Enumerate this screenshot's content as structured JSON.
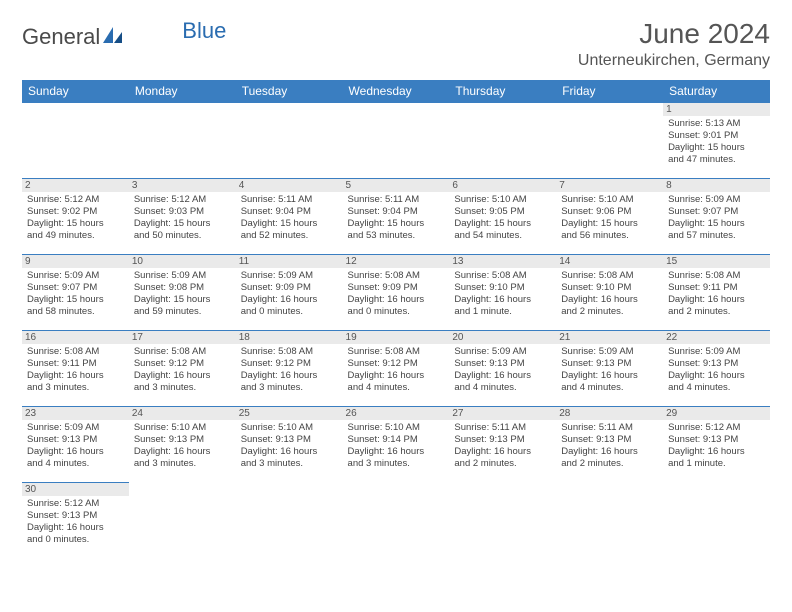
{
  "logo": {
    "text1": "General",
    "text2": "Blue"
  },
  "title": {
    "month": "June 2024",
    "location": "Unterneukirchen, Germany"
  },
  "colors": {
    "header_bg": "#3a7ec1",
    "header_fg": "#ffffff",
    "daynum_bg": "#eaeaea",
    "row_border": "#3a7ec1",
    "text": "#444444"
  },
  "daynames": [
    "Sunday",
    "Monday",
    "Tuesday",
    "Wednesday",
    "Thursday",
    "Friday",
    "Saturday"
  ],
  "weeks": [
    [
      null,
      null,
      null,
      null,
      null,
      null,
      {
        "day": "1",
        "sunrise": "Sunrise: 5:13 AM",
        "sunset": "Sunset: 9:01 PM",
        "daylight1": "Daylight: 15 hours",
        "daylight2": "and 47 minutes."
      }
    ],
    [
      {
        "day": "2",
        "sunrise": "Sunrise: 5:12 AM",
        "sunset": "Sunset: 9:02 PM",
        "daylight1": "Daylight: 15 hours",
        "daylight2": "and 49 minutes."
      },
      {
        "day": "3",
        "sunrise": "Sunrise: 5:12 AM",
        "sunset": "Sunset: 9:03 PM",
        "daylight1": "Daylight: 15 hours",
        "daylight2": "and 50 minutes."
      },
      {
        "day": "4",
        "sunrise": "Sunrise: 5:11 AM",
        "sunset": "Sunset: 9:04 PM",
        "daylight1": "Daylight: 15 hours",
        "daylight2": "and 52 minutes."
      },
      {
        "day": "5",
        "sunrise": "Sunrise: 5:11 AM",
        "sunset": "Sunset: 9:04 PM",
        "daylight1": "Daylight: 15 hours",
        "daylight2": "and 53 minutes."
      },
      {
        "day": "6",
        "sunrise": "Sunrise: 5:10 AM",
        "sunset": "Sunset: 9:05 PM",
        "daylight1": "Daylight: 15 hours",
        "daylight2": "and 54 minutes."
      },
      {
        "day": "7",
        "sunrise": "Sunrise: 5:10 AM",
        "sunset": "Sunset: 9:06 PM",
        "daylight1": "Daylight: 15 hours",
        "daylight2": "and 56 minutes."
      },
      {
        "day": "8",
        "sunrise": "Sunrise: 5:09 AM",
        "sunset": "Sunset: 9:07 PM",
        "daylight1": "Daylight: 15 hours",
        "daylight2": "and 57 minutes."
      }
    ],
    [
      {
        "day": "9",
        "sunrise": "Sunrise: 5:09 AM",
        "sunset": "Sunset: 9:07 PM",
        "daylight1": "Daylight: 15 hours",
        "daylight2": "and 58 minutes."
      },
      {
        "day": "10",
        "sunrise": "Sunrise: 5:09 AM",
        "sunset": "Sunset: 9:08 PM",
        "daylight1": "Daylight: 15 hours",
        "daylight2": "and 59 minutes."
      },
      {
        "day": "11",
        "sunrise": "Sunrise: 5:09 AM",
        "sunset": "Sunset: 9:09 PM",
        "daylight1": "Daylight: 16 hours",
        "daylight2": "and 0 minutes."
      },
      {
        "day": "12",
        "sunrise": "Sunrise: 5:08 AM",
        "sunset": "Sunset: 9:09 PM",
        "daylight1": "Daylight: 16 hours",
        "daylight2": "and 0 minutes."
      },
      {
        "day": "13",
        "sunrise": "Sunrise: 5:08 AM",
        "sunset": "Sunset: 9:10 PM",
        "daylight1": "Daylight: 16 hours",
        "daylight2": "and 1 minute."
      },
      {
        "day": "14",
        "sunrise": "Sunrise: 5:08 AM",
        "sunset": "Sunset: 9:10 PM",
        "daylight1": "Daylight: 16 hours",
        "daylight2": "and 2 minutes."
      },
      {
        "day": "15",
        "sunrise": "Sunrise: 5:08 AM",
        "sunset": "Sunset: 9:11 PM",
        "daylight1": "Daylight: 16 hours",
        "daylight2": "and 2 minutes."
      }
    ],
    [
      {
        "day": "16",
        "sunrise": "Sunrise: 5:08 AM",
        "sunset": "Sunset: 9:11 PM",
        "daylight1": "Daylight: 16 hours",
        "daylight2": "and 3 minutes."
      },
      {
        "day": "17",
        "sunrise": "Sunrise: 5:08 AM",
        "sunset": "Sunset: 9:12 PM",
        "daylight1": "Daylight: 16 hours",
        "daylight2": "and 3 minutes."
      },
      {
        "day": "18",
        "sunrise": "Sunrise: 5:08 AM",
        "sunset": "Sunset: 9:12 PM",
        "daylight1": "Daylight: 16 hours",
        "daylight2": "and 3 minutes."
      },
      {
        "day": "19",
        "sunrise": "Sunrise: 5:08 AM",
        "sunset": "Sunset: 9:12 PM",
        "daylight1": "Daylight: 16 hours",
        "daylight2": "and 4 minutes."
      },
      {
        "day": "20",
        "sunrise": "Sunrise: 5:09 AM",
        "sunset": "Sunset: 9:13 PM",
        "daylight1": "Daylight: 16 hours",
        "daylight2": "and 4 minutes."
      },
      {
        "day": "21",
        "sunrise": "Sunrise: 5:09 AM",
        "sunset": "Sunset: 9:13 PM",
        "daylight1": "Daylight: 16 hours",
        "daylight2": "and 4 minutes."
      },
      {
        "day": "22",
        "sunrise": "Sunrise: 5:09 AM",
        "sunset": "Sunset: 9:13 PM",
        "daylight1": "Daylight: 16 hours",
        "daylight2": "and 4 minutes."
      }
    ],
    [
      {
        "day": "23",
        "sunrise": "Sunrise: 5:09 AM",
        "sunset": "Sunset: 9:13 PM",
        "daylight1": "Daylight: 16 hours",
        "daylight2": "and 4 minutes."
      },
      {
        "day": "24",
        "sunrise": "Sunrise: 5:10 AM",
        "sunset": "Sunset: 9:13 PM",
        "daylight1": "Daylight: 16 hours",
        "daylight2": "and 3 minutes."
      },
      {
        "day": "25",
        "sunrise": "Sunrise: 5:10 AM",
        "sunset": "Sunset: 9:13 PM",
        "daylight1": "Daylight: 16 hours",
        "daylight2": "and 3 minutes."
      },
      {
        "day": "26",
        "sunrise": "Sunrise: 5:10 AM",
        "sunset": "Sunset: 9:14 PM",
        "daylight1": "Daylight: 16 hours",
        "daylight2": "and 3 minutes."
      },
      {
        "day": "27",
        "sunrise": "Sunrise: 5:11 AM",
        "sunset": "Sunset: 9:13 PM",
        "daylight1": "Daylight: 16 hours",
        "daylight2": "and 2 minutes."
      },
      {
        "day": "28",
        "sunrise": "Sunrise: 5:11 AM",
        "sunset": "Sunset: 9:13 PM",
        "daylight1": "Daylight: 16 hours",
        "daylight2": "and 2 minutes."
      },
      {
        "day": "29",
        "sunrise": "Sunrise: 5:12 AM",
        "sunset": "Sunset: 9:13 PM",
        "daylight1": "Daylight: 16 hours",
        "daylight2": "and 1 minute."
      }
    ],
    [
      {
        "day": "30",
        "sunrise": "Sunrise: 5:12 AM",
        "sunset": "Sunset: 9:13 PM",
        "daylight1": "Daylight: 16 hours",
        "daylight2": "and 0 minutes."
      },
      null,
      null,
      null,
      null,
      null,
      null
    ]
  ]
}
